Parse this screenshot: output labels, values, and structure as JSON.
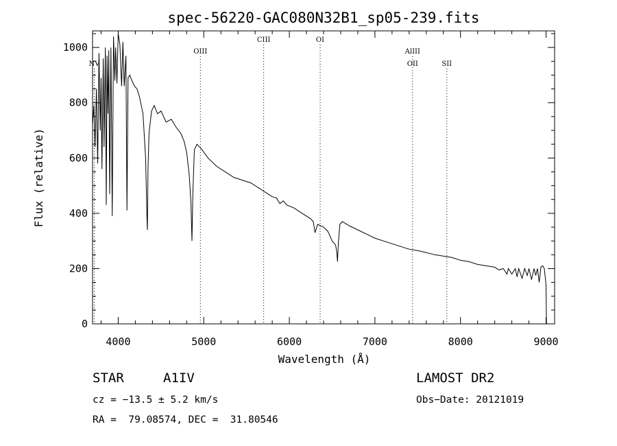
{
  "chart_data": {
    "type": "line",
    "title": "spec-56220-GAC080N32B1_sp05-239.fits",
    "xlabel": "Wavelength (Å)",
    "ylabel": "Flux (relative)",
    "xlim": [
      3700,
      9100
    ],
    "ylim": [
      0,
      1060
    ],
    "xticks": [
      4000,
      5000,
      6000,
      7000,
      8000,
      9000
    ],
    "yticks": [
      0,
      200,
      400,
      600,
      800,
      1000
    ],
    "grid": false,
    "line_markers": [
      {
        "label": "NV",
        "x": 3720,
        "row": 2
      },
      {
        "label": "OIII",
        "x": 4960,
        "row": 1
      },
      {
        "label": "CIII",
        "x": 5700,
        "row": 0
      },
      {
        "label": "OI",
        "x": 6360,
        "row": 0
      },
      {
        "label": "AlIII",
        "x": 7440,
        "row": 1
      },
      {
        "label": "OII",
        "x": 7440,
        "row": 2
      },
      {
        "label": "SII",
        "x": 7840,
        "row": 2
      }
    ],
    "series": [
      {
        "x": [
          3700,
          3715,
          3730,
          3745,
          3760,
          3775,
          3790,
          3800,
          3810,
          3825,
          3835,
          3850,
          3860,
          3870,
          3880,
          3890,
          3900,
          3915,
          3930,
          3945,
          3960,
          3970,
          3985,
          4000,
          4020,
          4040,
          4055,
          4070,
          4090,
          4102,
          4115,
          4135,
          4160,
          4190,
          4220,
          4250,
          4290,
          4320,
          4335,
          4341,
          4348,
          4360,
          4390,
          4420,
          4460,
          4500,
          4560,
          4620,
          4680,
          4730,
          4770,
          4800,
          4830,
          4850,
          4862,
          4872,
          4890,
          4920,
          4950,
          4980,
          5050,
          5150,
          5250,
          5350,
          5450,
          5550,
          5650,
          5750,
          5800,
          5850,
          5890,
          5930,
          5970,
          6050,
          6150,
          6250,
          6280,
          6300,
          6330,
          6400,
          6450,
          6500,
          6540,
          6555,
          6563,
          6572,
          6590,
          6620,
          6700,
          6800,
          6900,
          7000,
          7100,
          7200,
          7300,
          7400,
          7500,
          7600,
          7700,
          7800,
          7900,
          8000,
          8100,
          8200,
          8300,
          8400,
          8450,
          8500,
          8542,
          8560,
          8600,
          8640,
          8662,
          8680,
          8720,
          8750,
          8780,
          8800,
          8830,
          8860,
          8880,
          8900,
          8920,
          8940,
          8960,
          8980,
          9000,
          9005
        ],
        "values": [
          720,
          790,
          640,
          850,
          580,
          980,
          700,
          890,
          560,
          960,
          640,
          1000,
          430,
          970,
          760,
          990,
          470,
          1000,
          390,
          1040,
          880,
          1000,
          870,
          1050,
          1010,
          860,
          1020,
          860,
          970,
          410,
          890,
          900,
          880,
          860,
          850,
          820,
          760,
          600,
          390,
          340,
          560,
          690,
          770,
          790,
          760,
          770,
          730,
          740,
          710,
          690,
          660,
          620,
          540,
          440,
          300,
          470,
          630,
          650,
          640,
          630,
          600,
          570,
          550,
          530,
          520,
          510,
          490,
          470,
          460,
          455,
          435,
          445,
          430,
          420,
          400,
          380,
          370,
          330,
          360,
          350,
          335,
          300,
          285,
          260,
          225,
          290,
          360,
          370,
          355,
          340,
          325,
          310,
          300,
          290,
          280,
          270,
          265,
          258,
          250,
          245,
          240,
          230,
          225,
          215,
          210,
          205,
          195,
          200,
          180,
          200,
          180,
          200,
          170,
          200,
          165,
          200,
          175,
          200,
          160,
          200,
          175,
          200,
          150,
          205,
          210,
          200,
          140,
          0
        ]
      }
    ]
  },
  "info": {
    "object_class": "STAR",
    "subclass": "A1IV",
    "survey": "LAMOST DR2",
    "cz": "cz = −13.5 ± 5.2 km/s",
    "obs_date": "Obs−Date: 20121019",
    "radec": "RA =  79.08574, DEC =  31.80546"
  }
}
